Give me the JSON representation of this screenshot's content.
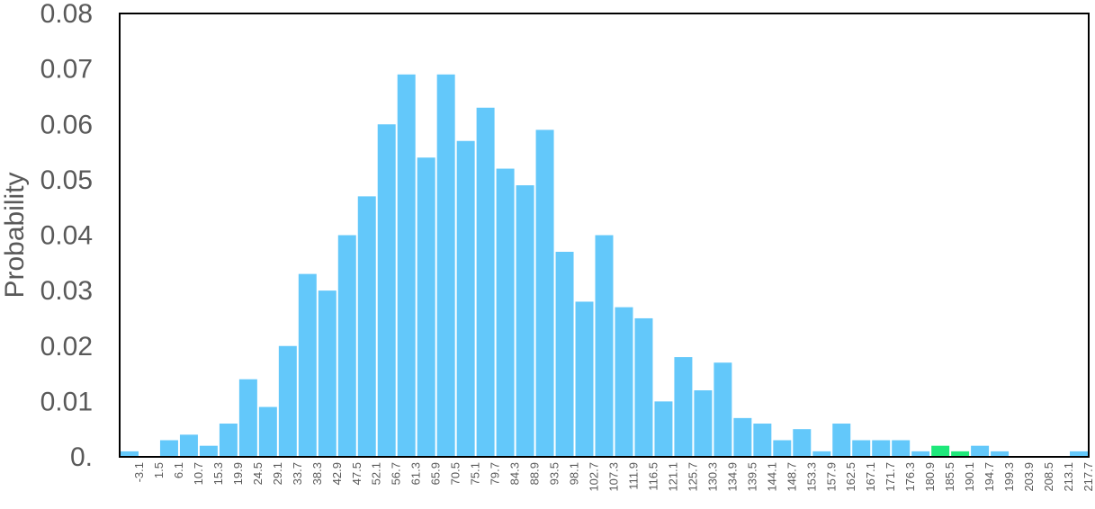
{
  "chart_data": {
    "type": "bar",
    "title": "",
    "xlabel": "",
    "ylabel": "Probability",
    "ylim": [
      0,
      0.08
    ],
    "yticks": [
      "0.",
      "0.01",
      "0.02",
      "0.03",
      "0.04",
      "0.05",
      "0.06",
      "0.07",
      "0.08"
    ],
    "grid": false,
    "legend": "none",
    "colors": {
      "default": "#63c8fa",
      "highlight": "#1ee87a",
      "frame": "#000000",
      "text": "#595959"
    },
    "categories": [
      "-3.1",
      "1.5",
      "6.1",
      "10.7",
      "15.3",
      "19.9",
      "24.5",
      "29.1",
      "33.7",
      "38.3",
      "42.9",
      "47.5",
      "52.1",
      "56.7",
      "61.3",
      "65.9",
      "70.5",
      "75.1",
      "79.7",
      "84.3",
      "88.9",
      "93.5",
      "98.1",
      "102.7",
      "107.3",
      "111.9",
      "116.5",
      "121.1",
      "125.7",
      "130.3",
      "134.9",
      "139.5",
      "144.1",
      "148.7",
      "153.3",
      "157.9",
      "162.5",
      "167.1",
      "171.7",
      "176.3",
      "180.9",
      "185.5",
      "190.1",
      "194.7",
      "199.3",
      "203.9",
      "208.5",
      "213.1",
      "217.7"
    ],
    "values": [
      0.001,
      0,
      0.003,
      0.004,
      0.002,
      0.006,
      0.014,
      0.009,
      0.02,
      0.033,
      0.03,
      0.04,
      0.047,
      0.06,
      0.069,
      0.054,
      0.069,
      0.057,
      0.063,
      0.052,
      0.049,
      0.059,
      0.037,
      0.028,
      0.04,
      0.027,
      0.025,
      0.01,
      0.018,
      0.012,
      0.017,
      0.007,
      0.006,
      0.003,
      0.005,
      0.001,
      0.006,
      0.003,
      0.003,
      0.003,
      0.001,
      0.002,
      0.001,
      0.002,
      0.001,
      0,
      0,
      0,
      0.001
    ],
    "highlight_categories": [
      "185.5",
      "190.1",
      "208.5"
    ]
  }
}
